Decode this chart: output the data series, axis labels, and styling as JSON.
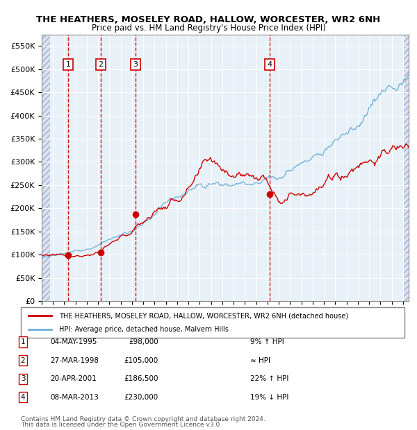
{
  "title": "THE HEATHERS, MOSELEY ROAD, HALLOW, WORCESTER, WR2 6NH",
  "subtitle": "Price paid vs. HM Land Registry's House Price Index (HPI)",
  "legend_line1": "THE HEATHERS, MOSELEY ROAD, HALLOW, WORCESTER, WR2 6NH (detached house)",
  "legend_line2": "HPI: Average price, detached house, Malvern Hills",
  "footer_line1": "Contains HM Land Registry data © Crown copyright and database right 2024.",
  "footer_line2": "This data is licensed under the Open Government Licence v3.0.",
  "hpi_color": "#6baed6",
  "price_color": "#cc0000",
  "sale_dot_color": "#cc0000",
  "vline_color": "#cc0000",
  "box_color": "#cc0000",
  "bg_main": "#e8f0f8",
  "bg_hatch": "#dde8f4",
  "bg_outside": "#f0f0f0",
  "ylim": [
    0,
    575000
  ],
  "yticks": [
    0,
    50000,
    100000,
    150000,
    200000,
    250000,
    300000,
    350000,
    400000,
    450000,
    500000,
    550000
  ],
  "xlim_start": 1993.0,
  "xlim_end": 2025.5,
  "sale_dates": [
    1995.34,
    1998.24,
    2001.3,
    2013.18
  ],
  "sale_prices": [
    98000,
    105000,
    186500,
    230000
  ],
  "sale_labels": [
    "1",
    "2",
    "3",
    "4"
  ],
  "table_data": [
    [
      "1",
      "04-MAY-1995",
      "£98,000",
      "9% ↑ HPI"
    ],
    [
      "2",
      "27-MAR-1998",
      "£105,000",
      "≈ HPI"
    ],
    [
      "3",
      "20-APR-2001",
      "£186,500",
      "22% ↑ HPI"
    ],
    [
      "4",
      "08-MAR-2013",
      "£230,000",
      "19% ↓ HPI"
    ]
  ]
}
